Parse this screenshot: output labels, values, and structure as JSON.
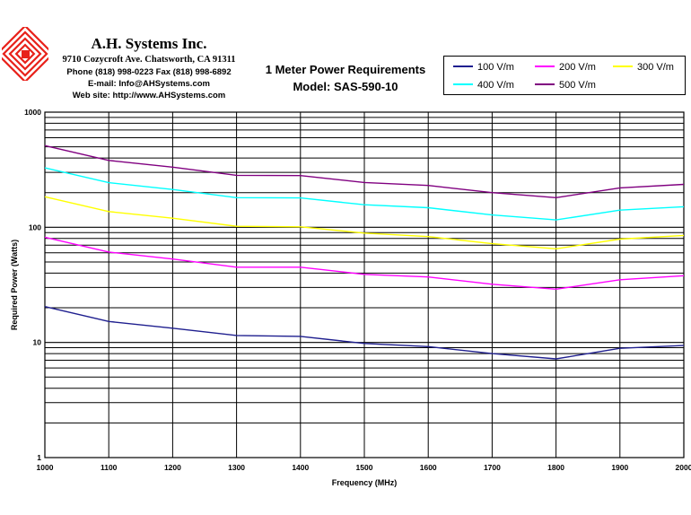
{
  "header": {
    "company_name": "A.H. Systems Inc.",
    "address": "9710 Cozycroft Ave. Chatsworth, CA 91311",
    "phone": "Phone (818) 998-0223 Fax (818) 998-6892",
    "email": "E-mail: Info@AHSystems.com",
    "website": "Web site: http://www.AHSystems.com",
    "logo_icon": "ahsystems-logo-icon"
  },
  "chart_title": {
    "line1": "1 Meter Power Requirements",
    "line2": "Model: SAS-590-10"
  },
  "chart_data": {
    "type": "line",
    "title": "1 Meter Power Requirements",
    "subtitle": "Model: SAS-590-10",
    "xlabel": "Frequency (MHz)",
    "ylabel": "Required Power (Watts)",
    "xlim": [
      1000,
      2000
    ],
    "ylim": [
      1,
      1000
    ],
    "yscale": "log",
    "grid": true,
    "legend_position": "top-right",
    "x_ticks": [
      "1000",
      "1100",
      "1200",
      "1300",
      "1400",
      "1500",
      "1600",
      "1700",
      "1800",
      "1900",
      "2000"
    ],
    "y_ticks": [
      "1",
      "10",
      "100",
      "1000"
    ],
    "x": [
      1000,
      1100,
      1200,
      1300,
      1400,
      1500,
      1600,
      1700,
      1800,
      1900,
      2000
    ],
    "series": [
      {
        "name": "100 V/m",
        "color": "#1f1f8f",
        "values": [
          20.5,
          15.2,
          13.3,
          11.5,
          11.3,
          9.8,
          9.2,
          8.0,
          7.2,
          8.9,
          9.4
        ]
      },
      {
        "name": "200 V/m",
        "color": "#ff00ff",
        "values": [
          82,
          61,
          53,
          45,
          45,
          39,
          37,
          32,
          29,
          35,
          38
        ]
      },
      {
        "name": "300 V/m",
        "color": "#ffff00",
        "values": [
          184,
          137,
          120,
          102,
          101,
          89,
          83,
          72,
          65,
          79,
          85
        ]
      },
      {
        "name": "400 V/m",
        "color": "#00ffff",
        "values": [
          328,
          244,
          213,
          181,
          180,
          157,
          148,
          128,
          116,
          141,
          151
        ]
      },
      {
        "name": "500 V/m",
        "color": "#800080",
        "values": [
          512,
          381,
          333,
          283,
          281,
          245,
          231,
          200,
          181,
          220,
          236
        ]
      }
    ]
  }
}
